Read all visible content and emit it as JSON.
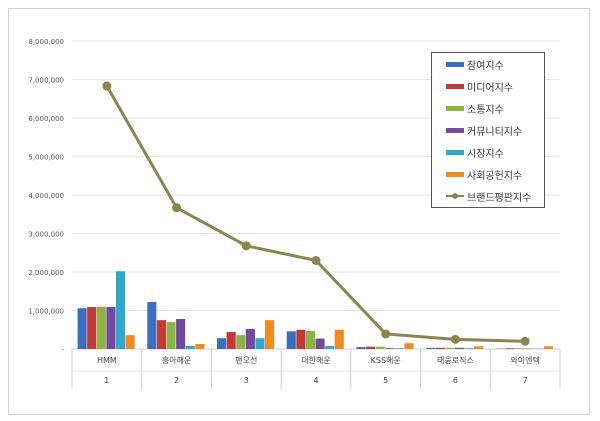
{
  "chart_data": {
    "type": "bar",
    "categories": [
      "HMM",
      "흥아해운",
      "팬오선",
      "대한해운",
      "KSS해운",
      "태웅로직스",
      "와이엔텍"
    ],
    "category_numbers": [
      "1",
      "2",
      "3",
      "4",
      "5",
      "6",
      "7"
    ],
    "ylim": [
      0,
      8000000
    ],
    "yticks": [
      "-",
      "1,000,000",
      "2,000,000",
      "3,000,000",
      "4,000,000",
      "5,000,000",
      "6,000,000",
      "7,000,000",
      "8,000,000"
    ],
    "grid": true,
    "legend_position": "top-right",
    "series": [
      {
        "name": "참여지수",
        "color": "#3a6fbf",
        "values": [
          1060000,
          1220000,
          280000,
          460000,
          50000,
          30000,
          10000
        ]
      },
      {
        "name": "미디어지수",
        "color": "#c0393b",
        "values": [
          1090000,
          750000,
          440000,
          500000,
          60000,
          30000,
          20000
        ]
      },
      {
        "name": "소통지수",
        "color": "#8db443",
        "values": [
          1100000,
          700000,
          360000,
          470000,
          60000,
          30000,
          20000
        ]
      },
      {
        "name": "커뮤니티지수",
        "color": "#7149a0",
        "values": [
          1090000,
          780000,
          520000,
          270000,
          20000,
          30000,
          10000
        ]
      },
      {
        "name": "시장지수",
        "color": "#2fa8c9",
        "values": [
          2020000,
          80000,
          280000,
          80000,
          20000,
          20000,
          10000
        ]
      },
      {
        "name": "사회공헌지수",
        "color": "#f28a22",
        "values": [
          360000,
          130000,
          750000,
          500000,
          150000,
          70000,
          70000
        ]
      }
    ],
    "line": {
      "name": "브랜드평판지수",
      "color": "#8b8551",
      "values": [
        6830000,
        3670000,
        2680000,
        2300000,
        390000,
        250000,
        200000
      ]
    }
  }
}
